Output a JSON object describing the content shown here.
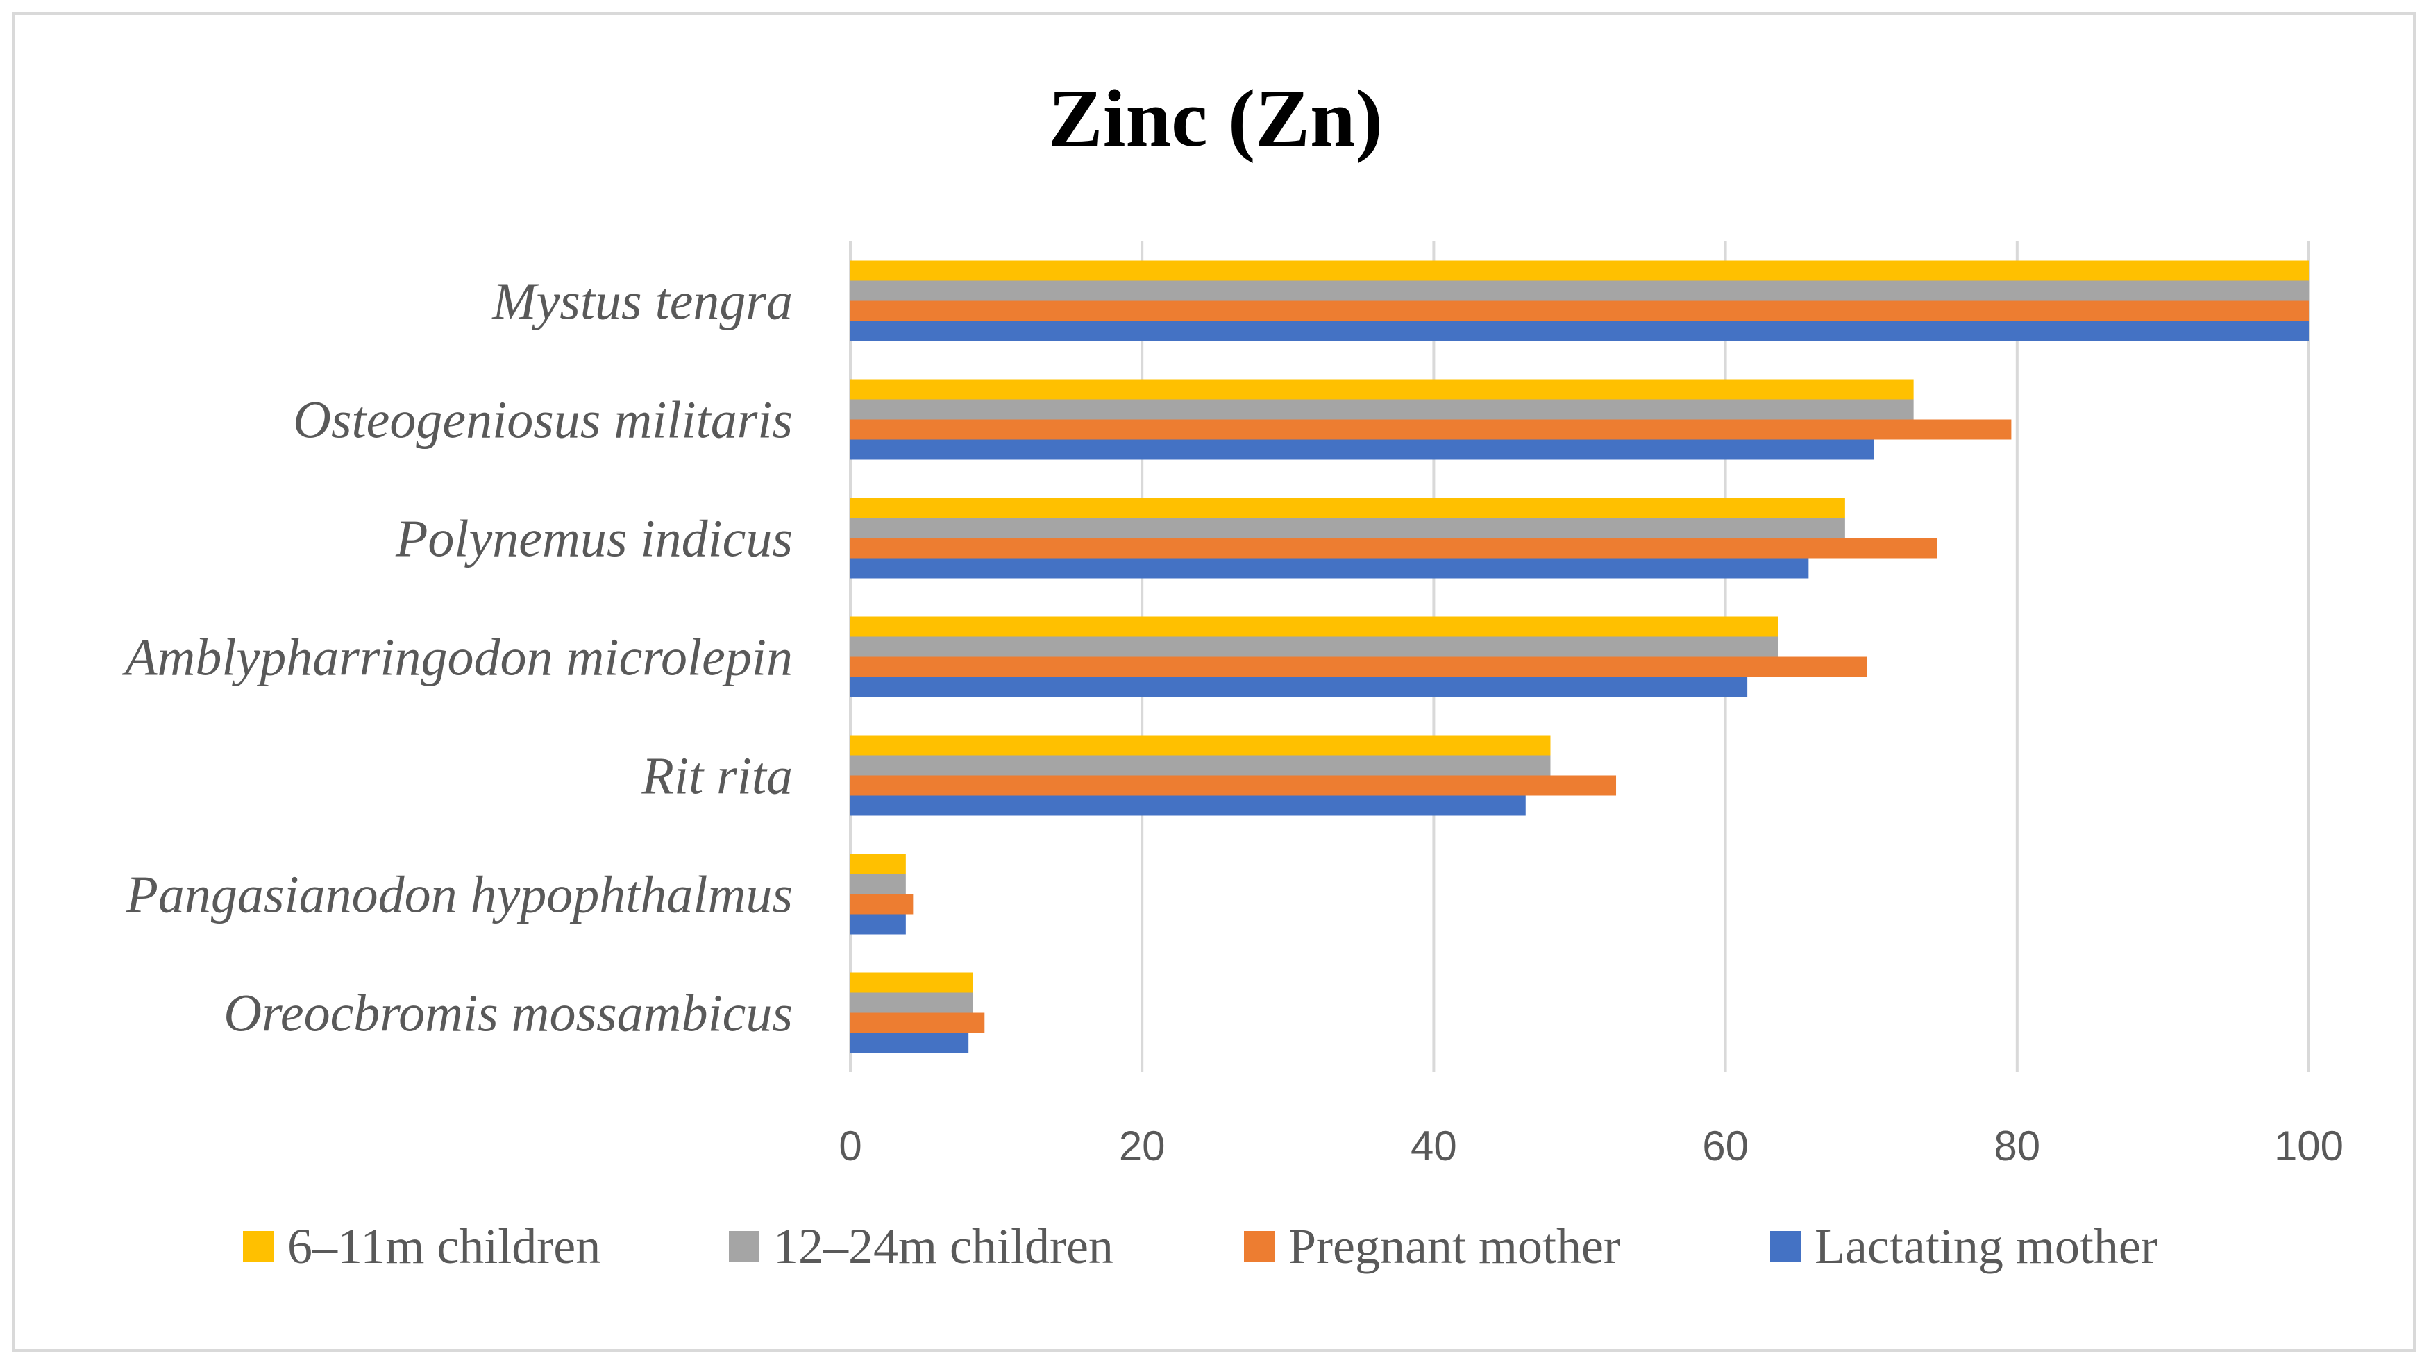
{
  "chart_data": {
    "type": "bar",
    "orientation": "horizontal",
    "title": "Zinc (Zn)",
    "categories": [
      "Mystus tengra",
      "Osteogeniosus militaris",
      "Polynemus indicus",
      "Amblypharringodon microlepin",
      "Rit rita",
      "Pangasianodon hypophthalmus",
      "Oreocbromis mossambicus"
    ],
    "series": [
      {
        "name": "6–11m children",
        "color": "#ffc000",
        "values": [
          100,
          72.9,
          68.2,
          63.6,
          48.0,
          3.8,
          8.4
        ]
      },
      {
        "name": "12–24m children",
        "color": "#a5a5a5",
        "values": [
          100,
          72.9,
          68.2,
          63.6,
          48.0,
          3.8,
          8.4
        ]
      },
      {
        "name": "Pregnant mother",
        "color": "#ed7d31",
        "values": [
          100,
          79.6,
          74.5,
          69.7,
          52.5,
          4.3,
          9.2
        ]
      },
      {
        "name": "Lactating mother",
        "color": "#4472c4",
        "values": [
          100,
          70.2,
          65.7,
          61.5,
          46.3,
          3.8,
          8.1
        ]
      }
    ],
    "xlim": [
      0,
      100
    ],
    "x_ticks": [
      "0",
      "20",
      "40",
      "60",
      "80",
      "100"
    ],
    "xlabel": "",
    "ylabel": "",
    "grid": "vertical",
    "legend_position": "bottom"
  }
}
